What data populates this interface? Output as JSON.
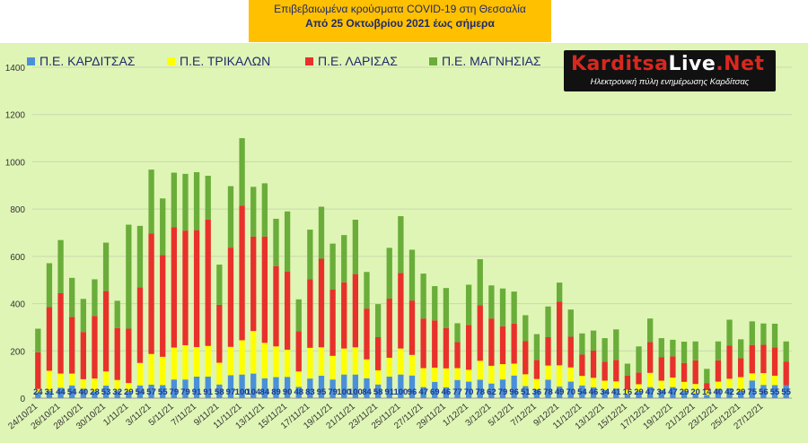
{
  "title": {
    "line1": "Επιβεβαιωμένα κρούσματα COVID-19 στη Θεσσαλία",
    "line2": "Από 25 Οκτωβρίου 2021 έως σήμερα"
  },
  "logo": {
    "brand_a": "Karditsa",
    "brand_b": "Live",
    "brand_c": ".Net",
    "tagline": "Ηλεκτρονική πύλη ενημέρωσης Καρδίτσας"
  },
  "colors": {
    "karditsa": "#4a90d9",
    "trikala": "#ffff00",
    "larisa": "#e8312a",
    "magnisia": "#6aad3a",
    "panel": "#dff5b5",
    "title_bg": "#ffc000"
  },
  "chart_data": {
    "type": "bar",
    "stacked": true,
    "ylim": [
      0,
      1400
    ],
    "yticks": [
      0,
      200,
      400,
      600,
      800,
      1000,
      1200,
      1400
    ],
    "x_tick_labels": [
      "24/10/21",
      "26/10/21",
      "28/10/21",
      "30/10/21",
      "1/11/21",
      "3/11/21",
      "5/11/21",
      "7/11/21",
      "9/11/21",
      "11/11/21",
      "13/11/21",
      "15/11/21",
      "17/11/21",
      "19/11/21",
      "21/11/21",
      "23/11/21",
      "25/11/21",
      "27/11/21",
      "29/11/21",
      "1/12/21",
      "3/12/21",
      "5/12/21",
      "7/12/21",
      "9/12/21",
      "11/12/21",
      "13/12/21",
      "15/12/21",
      "17/12/21",
      "19/12/21",
      "21/12/21",
      "23/12/21",
      "25/12/21",
      "27/12/21"
    ],
    "x_tick_every": 2,
    "series": [
      {
        "name": "Π.Ε. ΚΑΡΔΙΤΣΑΣ",
        "color_key": "karditsa",
        "values": [
          24,
          31,
          44,
          54,
          40,
          28,
          53,
          32,
          29,
          54,
          57,
          55,
          79,
          79,
          91,
          91,
          58,
          97,
          100,
          104,
          84,
          89,
          90,
          48,
          83,
          95,
          79,
          100,
          100,
          84,
          58,
          91,
          100,
          96,
          47,
          69,
          46,
          77,
          70,
          78,
          62,
          79,
          96,
          51,
          36,
          78,
          49,
          70,
          54,
          46,
          34,
          41,
          16,
          29,
          47,
          34,
          47,
          29,
          20,
          14,
          40,
          42,
          29,
          75,
          56,
          55,
          55
        ]
      },
      {
        "name": "Π.Ε. ΤΡΙΚΑΛΩΝ",
        "color_key": "trikala",
        "values": [
          15,
          85,
          60,
          50,
          40,
          55,
          60,
          45,
          35,
          95,
          130,
          120,
          135,
          145,
          125,
          130,
          92,
          120,
          145,
          180,
          150,
          130,
          115,
          65,
          130,
          120,
          100,
          110,
          115,
          80,
          60,
          80,
          110,
          87,
          80,
          60,
          80,
          50,
          50,
          80,
          75,
          65,
          50,
          50,
          45,
          60,
          90,
          60,
          40,
          40,
          40,
          30,
          20,
          30,
          60,
          40,
          40,
          40,
          40,
          20,
          30,
          40,
          60,
          30,
          50,
          40,
          0
        ]
      },
      {
        "name": "Π.Ε. ΛΑΡΙΣΑΣ",
        "color_key": "larisa",
        "values": [
          155,
          270,
          340,
          240,
          200,
          265,
          340,
          220,
          230,
          320,
          510,
          430,
          510,
          485,
          495,
          535,
          245,
          420,
          570,
          400,
          450,
          340,
          330,
          170,
          290,
          375,
          280,
          280,
          310,
          215,
          140,
          250,
          320,
          230,
          210,
          200,
          170,
          110,
          190,
          235,
          200,
          160,
          170,
          140,
          80,
          120,
          270,
          130,
          90,
          115,
          80,
          90,
          60,
          50,
          130,
          100,
          90,
          80,
          100,
          30,
          90,
          140,
          80,
          120,
          120,
          120,
          100
        ]
      },
      {
        "name": "Π.Ε. ΜΑΓΝΗΣΙΑΣ",
        "color_key": "magnisia",
        "values": [
          100,
          185,
          225,
          165,
          140,
          155,
          205,
          115,
          440,
          260,
          270,
          240,
          230,
          240,
          245,
          185,
          170,
          260,
          285,
          210,
          225,
          200,
          255,
          135,
          210,
          220,
          195,
          200,
          230,
          155,
          140,
          215,
          240,
          215,
          190,
          145,
          170,
          80,
          170,
          195,
          140,
          160,
          135,
          110,
          110,
          130,
          80,
          115,
          90,
          85,
          100,
          130,
          50,
          110,
          100,
          80,
          70,
          90,
          80,
          60,
          80,
          110,
          80,
          100,
          90,
          100,
          85
        ]
      }
    ],
    "data_labels": [
      24,
      31,
      44,
      54,
      40,
      28,
      53,
      32,
      29,
      54,
      57,
      55,
      79,
      79,
      91,
      91,
      58,
      97,
      100,
      104,
      84,
      89,
      90,
      48,
      83,
      95,
      79,
      100,
      100,
      84,
      58,
      91,
      100,
      96,
      47,
      69,
      46,
      77,
      70,
      78,
      62,
      79,
      96,
      51,
      36,
      78,
      49,
      70,
      54,
      46,
      34,
      41,
      16,
      29,
      47,
      34,
      47,
      29,
      20,
      14,
      40,
      42,
      29,
      75,
      56,
      55,
      55
    ]
  }
}
